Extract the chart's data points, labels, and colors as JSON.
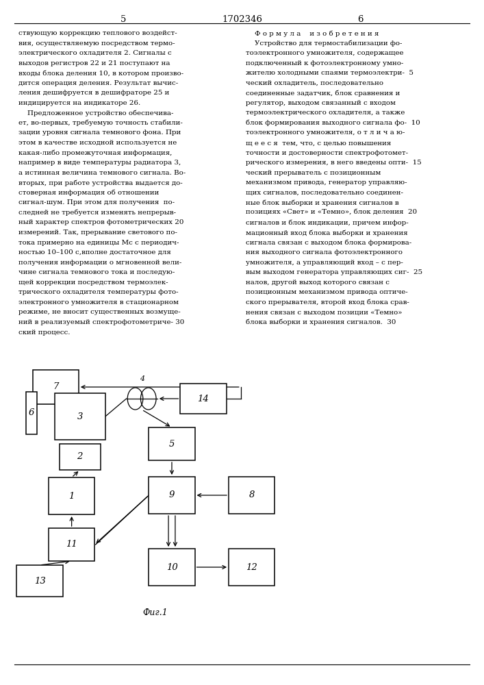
{
  "bg_color": "#ffffff",
  "text_color": "#000000",
  "line_color": "#000000",
  "box_facecolor": "#ffffff",
  "page_left": "5",
  "header_text": "1702346",
  "page_right": "6",
  "fig_caption": "Фиг.1",
  "left_col_lines": [
    "ствующую коррекцию теплового воздейст-",
    "вия, осуществляемую посредством термо-",
    "электрического охладителя 2. Сигналы с",
    "выходов регистров 22 и 21 поступают на",
    "входы блока деления 10, в котором произво-",
    "дится операция деления. Результат вычис-",
    "ления дешифруется в дешифраторе 25 и",
    "индицируется на индикаторе 26.",
    "    Предложенное устройство обеспечива-",
    "ет, во-первых, требуемую точность стабили-",
    "зации уровня сигнала темнового фона. При",
    "этом в качестве исходной используется не",
    "какая-либо промежуточная информация,",
    "например в виде температуры радиатора 3,",
    "а истинная величина темнового сигнала. Во-",
    "вторых, при работе устройства выдается до-",
    "стоверная информация об отношении",
    "сигнал-шум. При этом для получения  по-",
    "следней не требуется изменять непрерыв-",
    "ный характер спектров фотометрических 20",
    "измерений. Так, прерывание светового по-",
    "тока примерно на единицы Mс с периодич-",
    "ностью 10–100 с,вполне достаточное для",
    "получения информации о мгновенной вели-",
    "чине сигнала темнового тока и последую-",
    "щей коррекции посредством термоэлек-",
    "трического охладителя температуры фото-",
    "электронного умножителя в стационарном",
    "режиме, не вносит существенных возмуще-",
    "ний в реализуемый спектрофотометриче- 30",
    "ский процесс."
  ],
  "right_col_lines": [
    "    Ф о р м у л а    и з о б р е т е н и я",
    "    Устройство для термостабилизации фо-",
    "тоэлектронного умножителя, содержащее",
    "подключенный к фотоэлектронному умно-",
    "жителю холодными спаями термоэлектри-  5",
    "ческий охладитель, последовательно",
    "соединенные задатчик, блок сравнения и",
    "регулятор, выходом связанный с входом",
    "термоэлектрического охладителя, а также",
    "блок формирования выходного сигнала фо-  10",
    "тоэлектронного умножителя, о т л и ч а ю-",
    "щ е е с я  тем, что, с целью повышения",
    "точности и достоверности спектрофотомет-",
    "рического измерения, в него введены опти-  15",
    "ческий прерыватель с позиционным",
    "механизмом привода, генератор управляю-",
    "щих сигналов, последовательно соединен-",
    "ные блок выборки и хранения сигналов в",
    "позициях «Свет» и «Темно», блок деления  20",
    "сигналов и блок индикации, причем инфор-",
    "мационный вход блока выборки и хранения",
    "сигнала связан с выходом блока формирова-",
    "ния выходного сигнала фотоэлектронного",
    "умножителя, а управляющий вход – с пер-",
    "вым выходом генератора управляющих сиг-  25",
    "налов, другой выход которого связан с",
    "позиционным механизмом привода оптиче-",
    "ского прерывателя, второй вход блока срав-",
    "нения связан с выходом позиции «Темно»",
    "блока выборки и хранения сигналов.  30"
  ],
  "boxes": {
    "7": [
      0.115,
      0.435,
      0.095,
      0.05
    ],
    "6": [
      0.065,
      0.397,
      0.022,
      0.062
    ],
    "3": [
      0.165,
      0.392,
      0.105,
      0.068
    ],
    "2": [
      0.165,
      0.333,
      0.085,
      0.038
    ],
    "14": [
      0.42,
      0.418,
      0.095,
      0.044
    ],
    "5": [
      0.355,
      0.352,
      0.095,
      0.048
    ],
    "9": [
      0.355,
      0.277,
      0.095,
      0.054
    ],
    "8": [
      0.52,
      0.277,
      0.095,
      0.054
    ],
    "1": [
      0.148,
      0.276,
      0.095,
      0.054
    ],
    "11": [
      0.148,
      0.205,
      0.095,
      0.048
    ],
    "13": [
      0.082,
      0.152,
      0.095,
      0.046
    ],
    "10": [
      0.355,
      0.172,
      0.095,
      0.054
    ],
    "12": [
      0.52,
      0.172,
      0.095,
      0.054
    ]
  },
  "chopper": [
    0.293,
    0.418,
    0.016
  ],
  "chopper_label_4": [
    0.293,
    0.442
  ]
}
